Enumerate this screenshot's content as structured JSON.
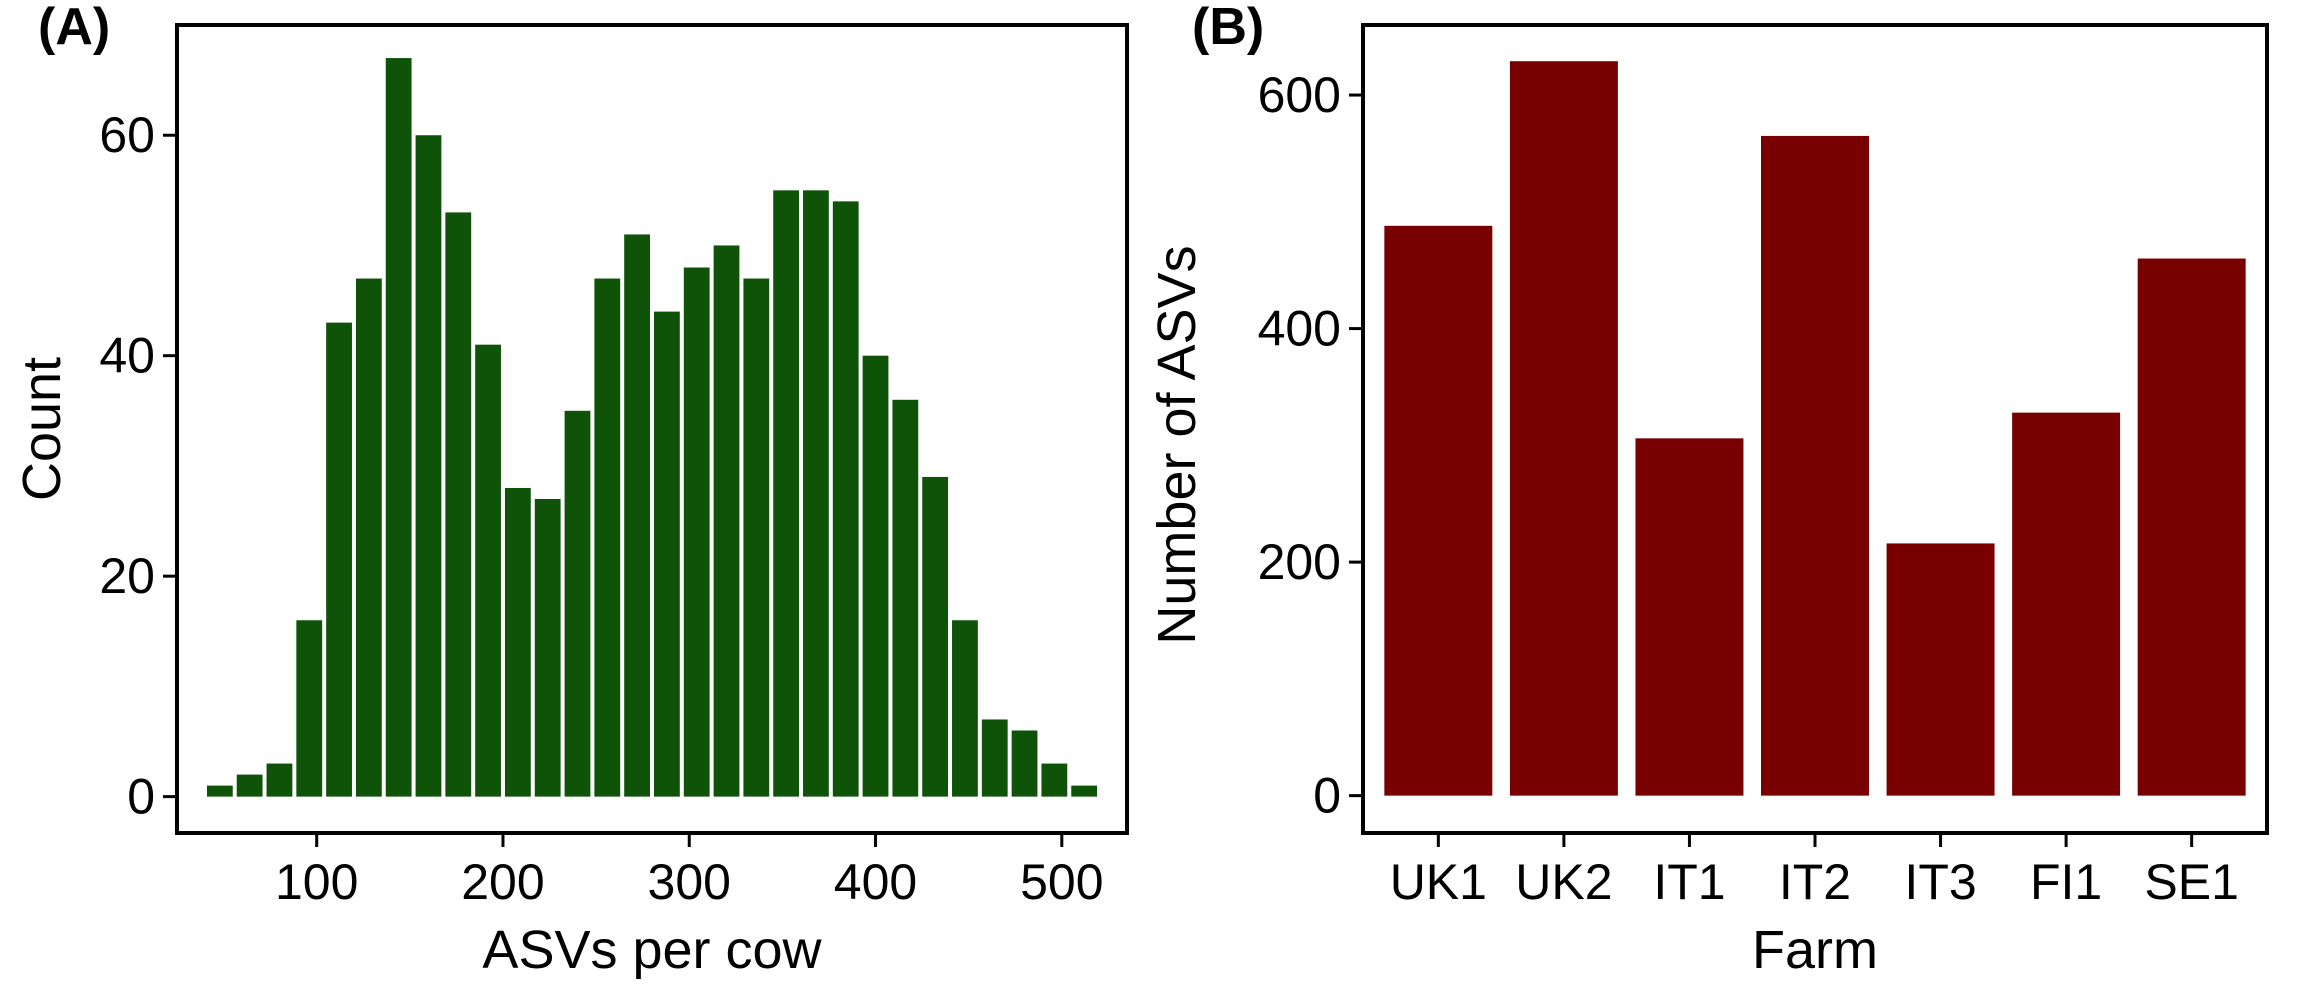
{
  "chart_data": [
    {
      "type": "bar",
      "panel_label": "(A)",
      "title": "",
      "xlabel": "ASVs per cow",
      "ylabel": "Count",
      "xlim": [
        25,
        535
      ],
      "ylim": [
        -3.3,
        70
      ],
      "xticks": [
        100,
        200,
        300,
        400,
        500
      ],
      "yticks": [
        0,
        20,
        40,
        60
      ],
      "bin_width": 16,
      "x": [
        48,
        64,
        80,
        96,
        112,
        128,
        144,
        160,
        176,
        192,
        208,
        224,
        240,
        256,
        272,
        288,
        304,
        320,
        336,
        352,
        368,
        384,
        400,
        416,
        432,
        448,
        464,
        480,
        496,
        512
      ],
      "values": [
        1,
        2,
        3,
        16,
        43,
        47,
        67,
        60,
        53,
        41,
        28,
        27,
        35,
        47,
        51,
        44,
        48,
        50,
        47,
        55,
        55,
        54,
        40,
        36,
        29,
        16,
        7,
        6,
        3,
        1
      ],
      "bar_color": "#0f5308",
      "grid": false,
      "legend": "none"
    },
    {
      "type": "bar",
      "panel_label": "(B)",
      "title": "",
      "xlabel": "Farm",
      "ylabel": "Number of ASVs",
      "ylim": [
        -32,
        660
      ],
      "yticks": [
        0,
        200,
        400,
        600
      ],
      "categories": [
        "UK1",
        "UK2",
        "IT1",
        "IT2",
        "IT3",
        "FI1",
        "SE1"
      ],
      "values": [
        488,
        629,
        306,
        565,
        216,
        328,
        460
      ],
      "bar_color": "#780000",
      "grid": false,
      "legend": "none"
    }
  ]
}
